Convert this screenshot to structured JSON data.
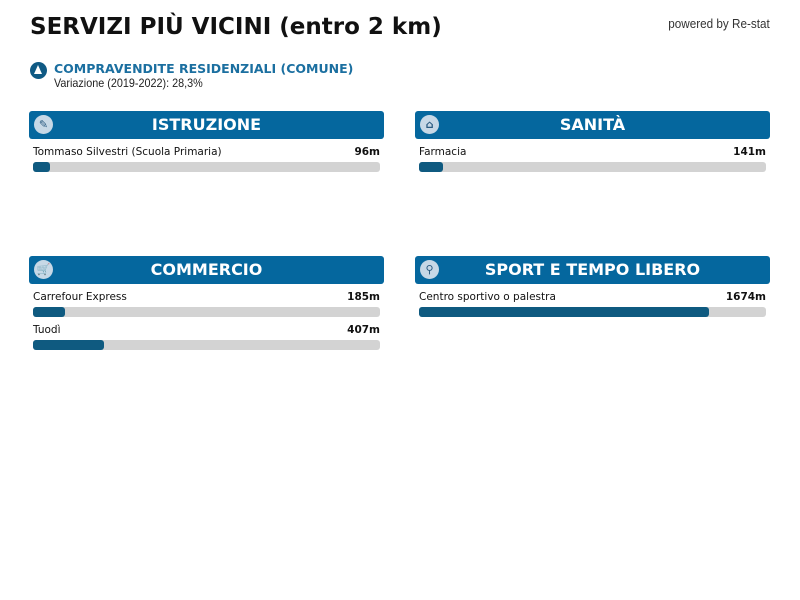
{
  "title": "SERVIZI PIÙ VICINI (entro 2 km)",
  "powered_by": "powered by Re-stat",
  "kpi": {
    "icon": "triangle-up-icon",
    "title": "COMPRAVENDITE RESIDENZIALI (COMUNE)",
    "subtitle": "Variazione (2019-2022): 28,3%"
  },
  "colors": {
    "header": "#05679e",
    "bar_fill": "#0f5a80",
    "bar_track": "#d3d3d3",
    "kpi_title": "#1b6fa0"
  },
  "scale_max_m": 2000,
  "sections": [
    {
      "title": "ISTRUZIONE",
      "icon": "school-icon",
      "items": [
        {
          "name": "Tommaso Silvestri (Scuola Primaria)",
          "distance": "96m",
          "meters": 96
        }
      ]
    },
    {
      "title": "SANITÀ",
      "icon": "pharmacy-icon",
      "items": [
        {
          "name": "Farmacia",
          "distance": "141m",
          "meters": 141
        }
      ]
    },
    {
      "title": "COMMERCIO",
      "icon": "cart-icon",
      "items": [
        {
          "name": "Carrefour Express",
          "distance": "185m",
          "meters": 185
        },
        {
          "name": "Tuodì",
          "distance": "407m",
          "meters": 407
        }
      ]
    },
    {
      "title": "SPORT E TEMPO LIBERO",
      "icon": "sport-icon",
      "items": [
        {
          "name": "Centro sportivo o palestra",
          "distance": "1674m",
          "meters": 1674
        }
      ]
    }
  ]
}
